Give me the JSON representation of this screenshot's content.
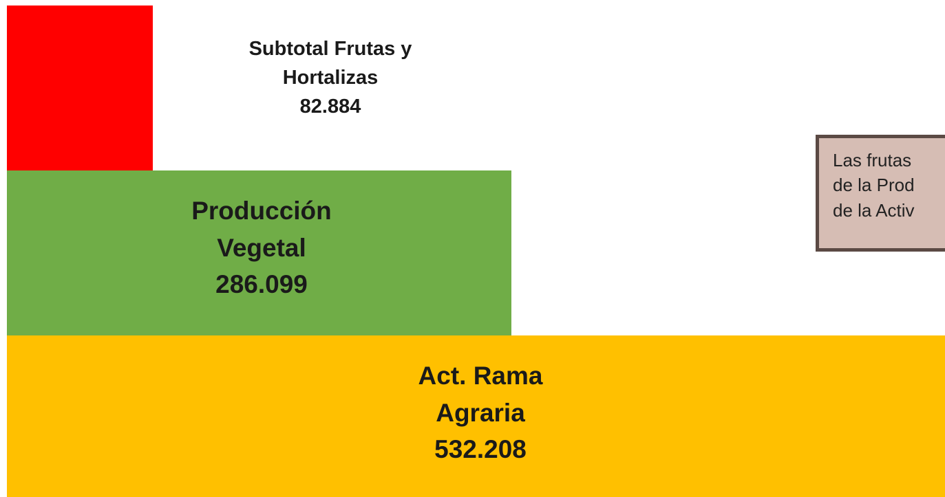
{
  "chart_data": {
    "type": "bar",
    "orientation": "horizontal",
    "categories": [
      "Subtotal Frutas y Hortalizas",
      "Producción Vegetal",
      "Act. Rama Agraria"
    ],
    "values": [
      82.884,
      286.099,
      532.208
    ],
    "colors": [
      "#ff0000",
      "#70ad47",
      "#ffc000"
    ],
    "xlim": [
      0,
      532.208
    ],
    "annotation": [
      "Las frutas",
      "de la Prod",
      "de la Activ"
    ]
  }
}
